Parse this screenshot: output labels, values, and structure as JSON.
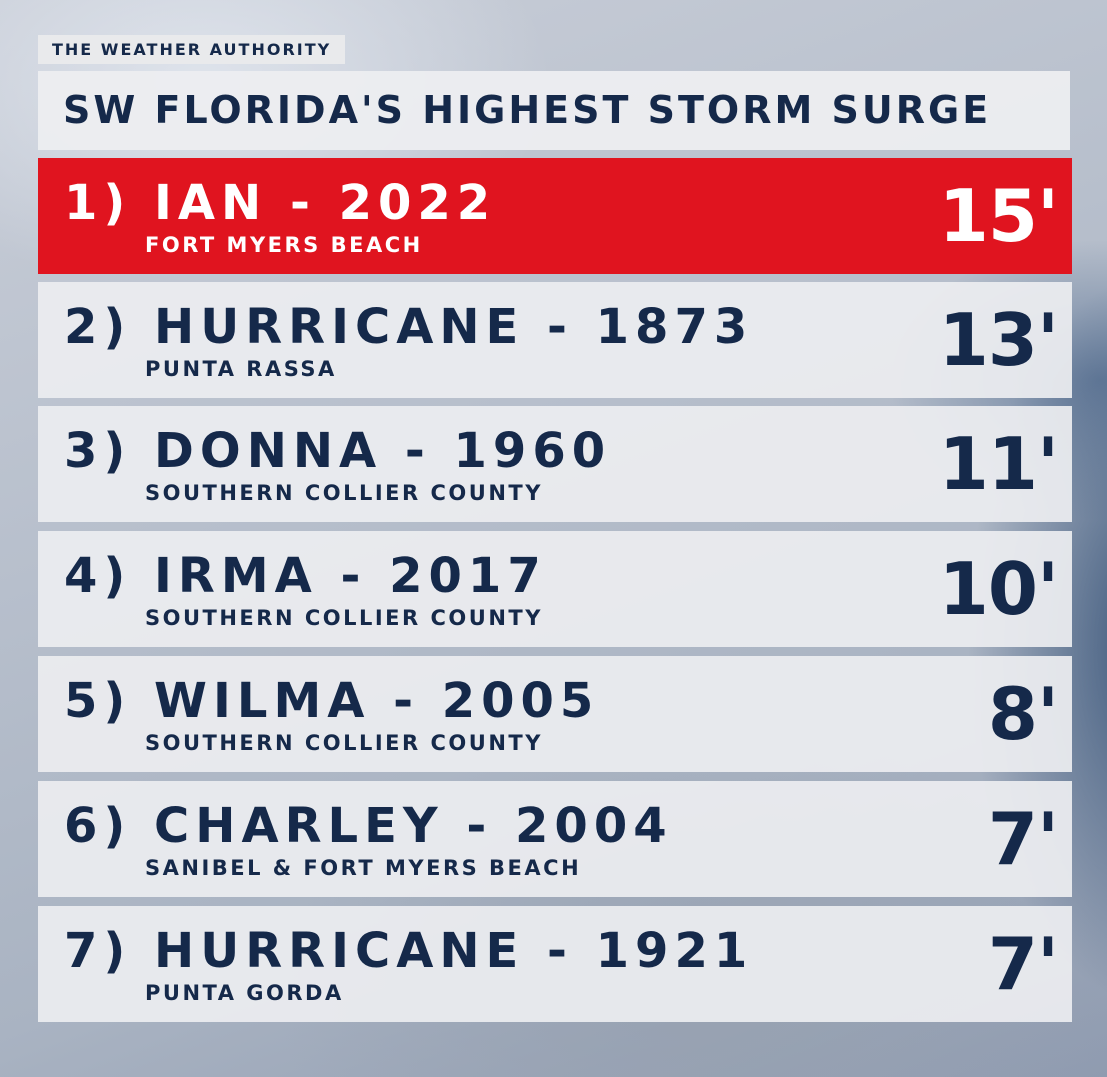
{
  "brand": "THE WEATHER AUTHORITY",
  "title": "SW FLORIDA'S HIGHEST STORM SURGE",
  "rows": [
    {
      "name": "1) IAN - 2022",
      "location": "FORT MYERS BEACH",
      "surge": "15'",
      "highlight": true
    },
    {
      "name": "2) HURRICANE - 1873",
      "location": "PUNTA RASSA",
      "surge": "13'",
      "highlight": false
    },
    {
      "name": "3) DONNA - 1960",
      "location": "SOUTHERN COLLIER COUNTY",
      "surge": "11'",
      "highlight": false
    },
    {
      "name": "4) IRMA - 2017",
      "location": "SOUTHERN COLLIER COUNTY",
      "surge": "10'",
      "highlight": false
    },
    {
      "name": "5) WILMA - 2005",
      "location": "SOUTHERN COLLIER COUNTY",
      "surge": "8'",
      "highlight": false
    },
    {
      "name": "6) CHARLEY - 2004",
      "location": "SANIBEL & FORT MYERS BEACH",
      "surge": "7'",
      "highlight": false
    },
    {
      "name": "7) HURRICANE - 1921",
      "location": "PUNTA GORDA",
      "surge": "7'",
      "highlight": false
    }
  ],
  "colors": {
    "navy": "#15294a",
    "highlight": "#e0141f",
    "panel": "#eceef0"
  }
}
